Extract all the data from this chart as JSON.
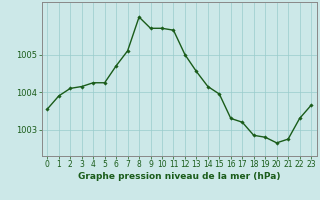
{
  "x": [
    0,
    1,
    2,
    3,
    4,
    5,
    6,
    7,
    8,
    9,
    10,
    11,
    12,
    13,
    14,
    15,
    16,
    17,
    18,
    19,
    20,
    21,
    22,
    23
  ],
  "y": [
    1003.55,
    1003.9,
    1004.1,
    1004.15,
    1004.25,
    1004.25,
    1004.7,
    1005.1,
    1006.0,
    1005.7,
    1005.7,
    1005.65,
    1005.0,
    1004.55,
    1004.15,
    1003.95,
    1003.3,
    1003.2,
    1002.85,
    1002.8,
    1002.65,
    1002.75,
    1003.3,
    1003.65
  ],
  "line_color": "#1a5c1a",
  "marker": "D",
  "markersize": 1.8,
  "linewidth": 1.0,
  "bg_color": "#cce8e8",
  "plot_bg_color": "#cce8e8",
  "grid_color": "#99cccc",
  "yticks": [
    1003,
    1004,
    1005
  ],
  "ylim": [
    1002.3,
    1006.4
  ],
  "xlim": [
    -0.5,
    23.5
  ],
  "xlabel": "Graphe pression niveau de la mer (hPa)",
  "xlabel_color": "#1a5c1a",
  "xlabel_fontsize": 6.5,
  "tick_color": "#1a5c1a",
  "ytick_fontsize": 6.0,
  "xtick_fontsize": 5.5,
  "axis_color": "#888888",
  "xtick_labels": [
    "0",
    "1",
    "2",
    "3",
    "4",
    "5",
    "6",
    "7",
    "8",
    "9",
    "10",
    "11",
    "12",
    "13",
    "14",
    "15",
    "16",
    "17",
    "18",
    "19",
    "20",
    "21",
    "22",
    "23"
  ]
}
